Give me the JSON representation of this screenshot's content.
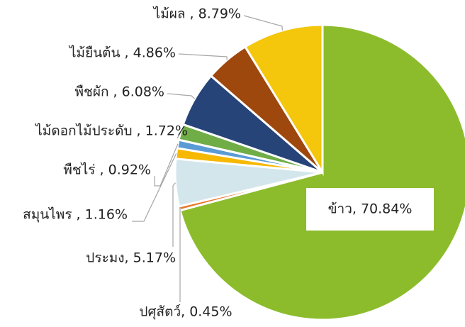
{
  "chart_data": {
    "type": "pie",
    "categories": [
      "ข้าว",
      "ปศุสัตว์",
      "ประมง",
      "สมุนไพร",
      "พืชไร่",
      "ไม้ดอกไม้ประดับ",
      "พืชผัก",
      "ไม้ยืนต้น",
      "ไม้ผล"
    ],
    "values": [
      70.84,
      0.45,
      5.17,
      1.16,
      0.92,
      1.72,
      6.08,
      4.86,
      8.79
    ],
    "value_labels": [
      "ข้าว, 70.84%",
      "ปศุสัตว์, 0.45%",
      "ประมง, 5.17%",
      "สมุนไพร , 1.16%",
      "พืชไร่ , 0.92%",
      "ไม้ดอกไม้ประดับ , 1.72%",
      "พืชผัก , 6.08%",
      "ไม้ยืนต้น , 4.86%",
      "ไม้ผล , 8.79%"
    ],
    "colors": [
      "#8cbc2c",
      "#e9782a",
      "#d3e6ec",
      "#f6b800",
      "#5b9bd5",
      "#70ad47",
      "#264478",
      "#9e480e",
      "#f4c60c"
    ]
  }
}
